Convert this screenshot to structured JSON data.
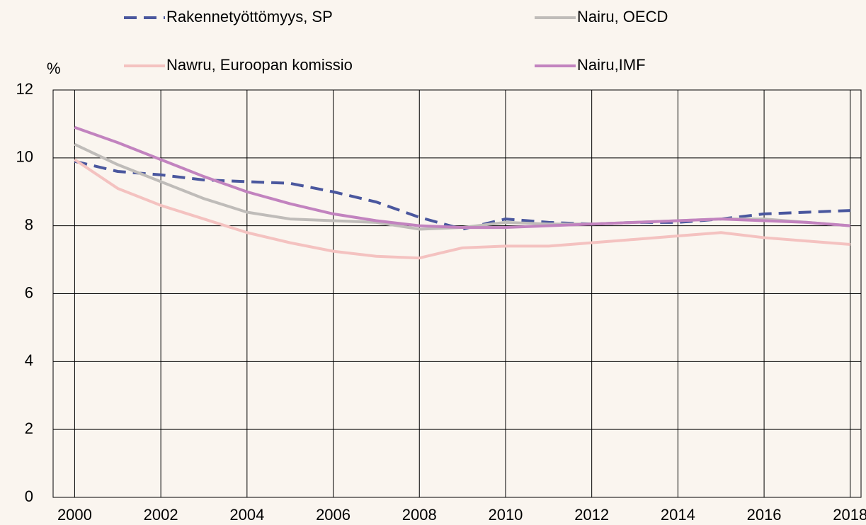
{
  "chart_data": {
    "type": "line",
    "y_unit": "%",
    "x": [
      2000,
      2001,
      2002,
      2003,
      2004,
      2005,
      2006,
      2007,
      2008,
      2009,
      2010,
      2011,
      2012,
      2013,
      2014,
      2015,
      2016,
      2017,
      2018
    ],
    "series": [
      {
        "name": "Rakennetyöttömyys, SP",
        "color": "#4a579e",
        "dash": true,
        "values": [
          9.9,
          9.6,
          9.5,
          9.35,
          9.3,
          9.25,
          9.0,
          8.7,
          8.25,
          7.9,
          8.2,
          8.1,
          8.05,
          8.1,
          8.1,
          8.2,
          8.35,
          8.4,
          8.45
        ]
      },
      {
        "name": "Nairu, OECD",
        "color": "#bfbcb9",
        "dash": false,
        "values": [
          10.4,
          9.8,
          9.3,
          8.8,
          8.4,
          8.2,
          8.15,
          8.1,
          7.9,
          7.95,
          8.1,
          8.05,
          8.05,
          8.1,
          8.15,
          8.2,
          8.2,
          8.1,
          8.0
        ]
      },
      {
        "name": "Nawru, Euroopan komissio",
        "color": "#f4c2c0",
        "dash": false,
        "values": [
          9.95,
          9.1,
          8.6,
          8.2,
          7.8,
          7.5,
          7.25,
          7.1,
          7.05,
          7.35,
          7.4,
          7.4,
          7.5,
          7.6,
          7.7,
          7.8,
          7.65,
          7.55,
          7.45
        ]
      },
      {
        "name": "Nairu,IMF",
        "color": "#c283bf",
        "dash": false,
        "values": [
          10.9,
          10.45,
          9.95,
          9.45,
          9.0,
          8.65,
          8.35,
          8.15,
          8.0,
          7.95,
          7.95,
          8.0,
          8.05,
          8.1,
          8.15,
          8.2,
          8.15,
          8.1,
          8.0
        ]
      }
    ],
    "xlim": [
      1999.5,
      2018.25
    ],
    "xticks": [
      2000,
      2002,
      2004,
      2006,
      2008,
      2010,
      2012,
      2014,
      2016,
      2018
    ],
    "ylim": [
      0,
      12
    ],
    "yticks": [
      0,
      2,
      4,
      6,
      8,
      10,
      12
    ],
    "grid": true
  }
}
